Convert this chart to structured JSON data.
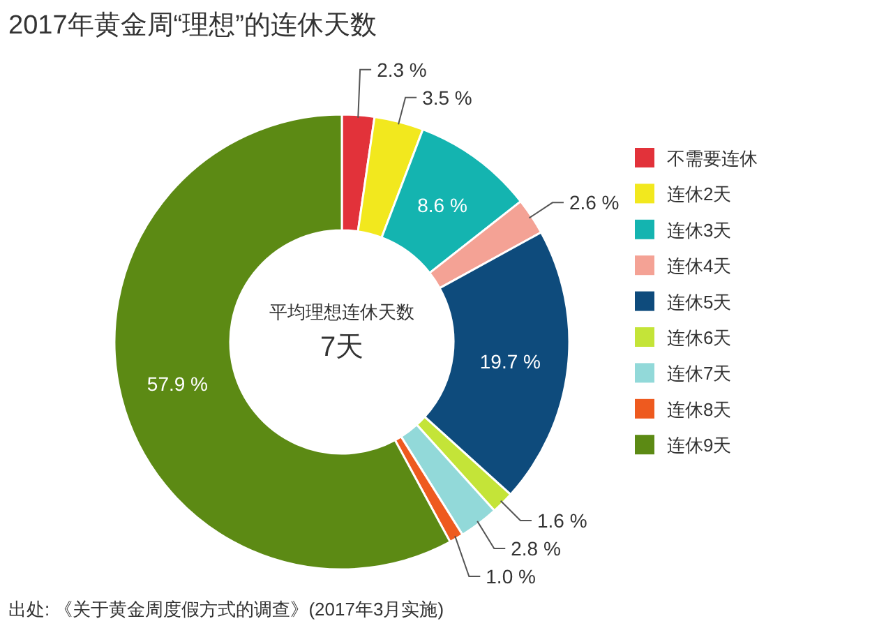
{
  "chart_data": {
    "type": "donut",
    "title": "2017年黄金周“理想”的连休天数",
    "categories": [
      "不需要连休",
      "连休2天",
      "连休3天",
      "连休4天",
      "连休5天",
      "连休6天",
      "连休7天",
      "连休8天",
      "连休9天"
    ],
    "values": [
      2.3,
      3.5,
      8.6,
      2.6,
      19.7,
      1.6,
      2.8,
      1.0,
      57.9
    ],
    "colors": [
      "#e2323a",
      "#f2e81e",
      "#14b4b0",
      "#f4a295",
      "#0e4b7c",
      "#c4e438",
      "#92d9d9",
      "#ee5a1f",
      "#5c8a14"
    ],
    "value_labels": [
      "2.3 %",
      "3.5 %",
      "8.6 %",
      "2.6 %",
      "19.7 %",
      "1.6 %",
      "2.8 %",
      "1.0 %",
      "57.9 %"
    ],
    "annotations": [
      "平均理想连休天数",
      "7天",
      "出处: 《关于黄金周度假方式的调查》(2017年3月实施)"
    ],
    "legend": "right"
  }
}
